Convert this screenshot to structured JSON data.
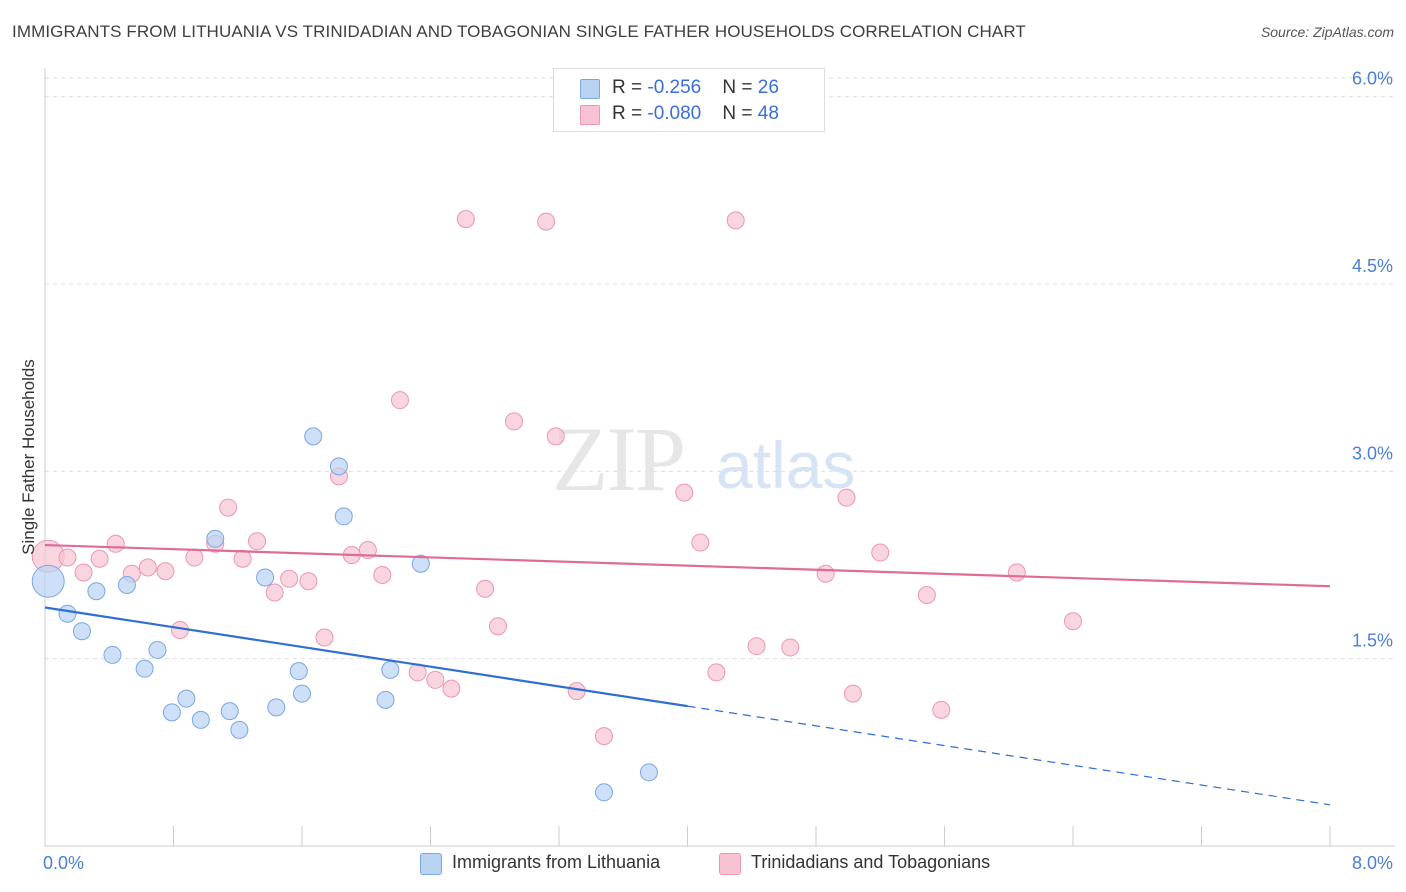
{
  "header": {
    "title": "IMMIGRANTS FROM LITHUANIA VS TRINIDADIAN AND TOBAGONIAN SINGLE FATHER HOUSEHOLDS CORRELATION CHART",
    "source": "Source: ZipAtlas.com"
  },
  "legend_top": {
    "rows": [
      {
        "r_label": "R = ",
        "r_value": "-0.256",
        "n_label": "N = ",
        "n_value": "26"
      },
      {
        "r_label": "R = ",
        "r_value": "-0.080",
        "n_label": "N = ",
        "n_value": "48"
      }
    ]
  },
  "legend_bottom": {
    "items": [
      {
        "label": "Immigrants from Lithuania"
      },
      {
        "label": "Trinidadians and Tobagonians"
      }
    ]
  },
  "watermark": {
    "zip": "ZIP",
    "atlas": "atlas"
  },
  "colors": {
    "blue_fill": "#b9d3f3",
    "blue_stroke": "#7aa6e3",
    "blue_line": "#2f6fd4",
    "pink_fill": "#f7c3d3",
    "pink_stroke": "#ec96b3",
    "pink_line": "#e06b96",
    "axis_text": "#4a7fd8",
    "grid": "#dddddd"
  },
  "chart_data": {
    "type": "scatter",
    "title": "IMMIGRANTS FROM LITHUANIA VS TRINIDADIAN AND TOBAGONIAN SINGLE FATHER HOUSEHOLDS CORRELATION CHART",
    "xlabel": "",
    "ylabel": "Single Father Households",
    "xlim": [
      0,
      8
    ],
    "ylim": [
      0,
      6.15
    ],
    "x_tick_labels": [
      "0.0%",
      "8.0%"
    ],
    "y_ticks": [
      1.5,
      3.0,
      4.5,
      6.0
    ],
    "y_tick_labels": [
      "1.5%",
      "3.0%",
      "4.5%",
      "6.0%"
    ],
    "grid": true,
    "legend_position": "top-center",
    "series": [
      {
        "name": "Immigrants from Lithuania",
        "r": -0.256,
        "n": 26,
        "points": [
          [
            0.02,
            2.12
          ],
          [
            0.14,
            1.86
          ],
          [
            0.23,
            1.72
          ],
          [
            0.32,
            2.04
          ],
          [
            0.42,
            1.53
          ],
          [
            0.51,
            2.09
          ],
          [
            0.62,
            1.42
          ],
          [
            0.7,
            1.57
          ],
          [
            0.79,
            1.07
          ],
          [
            0.88,
            1.18
          ],
          [
            0.97,
            1.01
          ],
          [
            1.06,
            2.46
          ],
          [
            1.15,
            1.08
          ],
          [
            1.21,
            0.93
          ],
          [
            1.37,
            2.15
          ],
          [
            1.44,
            1.11
          ],
          [
            1.67,
            3.28
          ],
          [
            1.58,
            1.4
          ],
          [
            1.6,
            1.22
          ],
          [
            1.83,
            3.04
          ],
          [
            1.86,
            2.64
          ],
          [
            2.12,
            1.17
          ],
          [
            2.15,
            1.41
          ],
          [
            2.34,
            2.26
          ],
          [
            3.48,
            0.43
          ],
          [
            3.76,
            0.59
          ]
        ],
        "trend": {
          "x": [
            0.0,
            4.0
          ],
          "y": [
            1.91,
            1.12
          ]
        },
        "trend_dashed": {
          "x": [
            4.0,
            8.0
          ],
          "y": [
            1.12,
            0.33
          ]
        }
      },
      {
        "name": "Trinidadians and Tobagonians",
        "r": -0.08,
        "n": 48,
        "points": [
          [
            0.02,
            2.32
          ],
          [
            0.14,
            2.31
          ],
          [
            0.24,
            2.19
          ],
          [
            0.34,
            2.3
          ],
          [
            0.44,
            2.42
          ],
          [
            0.54,
            2.18
          ],
          [
            0.64,
            2.23
          ],
          [
            0.75,
            2.2
          ],
          [
            0.84,
            1.73
          ],
          [
            0.93,
            2.31
          ],
          [
            1.06,
            2.42
          ],
          [
            1.14,
            2.71
          ],
          [
            1.23,
            2.3
          ],
          [
            1.32,
            2.44
          ],
          [
            1.43,
            2.03
          ],
          [
            1.52,
            2.14
          ],
          [
            1.64,
            2.12
          ],
          [
            1.74,
            1.67
          ],
          [
            1.83,
            2.96
          ],
          [
            1.91,
            2.33
          ],
          [
            2.01,
            2.37
          ],
          [
            2.1,
            2.17
          ],
          [
            2.21,
            3.57
          ],
          [
            2.32,
            1.39
          ],
          [
            2.43,
            1.33
          ],
          [
            2.53,
            1.26
          ],
          [
            2.62,
            5.02
          ],
          [
            2.74,
            2.06
          ],
          [
            2.82,
            1.76
          ],
          [
            2.92,
            3.4
          ],
          [
            3.12,
            5.0
          ],
          [
            3.18,
            3.28
          ],
          [
            3.31,
            1.24
          ],
          [
            3.48,
            0.88
          ],
          [
            3.98,
            2.83
          ],
          [
            4.08,
            2.43
          ],
          [
            4.18,
            1.39
          ],
          [
            4.3,
            5.01
          ],
          [
            4.43,
            1.6
          ],
          [
            4.64,
            1.59
          ],
          [
            4.86,
            2.18
          ],
          [
            4.99,
            2.79
          ],
          [
            5.03,
            1.22
          ],
          [
            5.2,
            2.35
          ],
          [
            5.49,
            2.01
          ],
          [
            5.58,
            1.09
          ],
          [
            6.05,
            2.19
          ],
          [
            6.4,
            1.8
          ]
        ],
        "trend": {
          "x": [
            0.0,
            8.0
          ],
          "y": [
            2.41,
            2.08
          ]
        }
      }
    ]
  }
}
